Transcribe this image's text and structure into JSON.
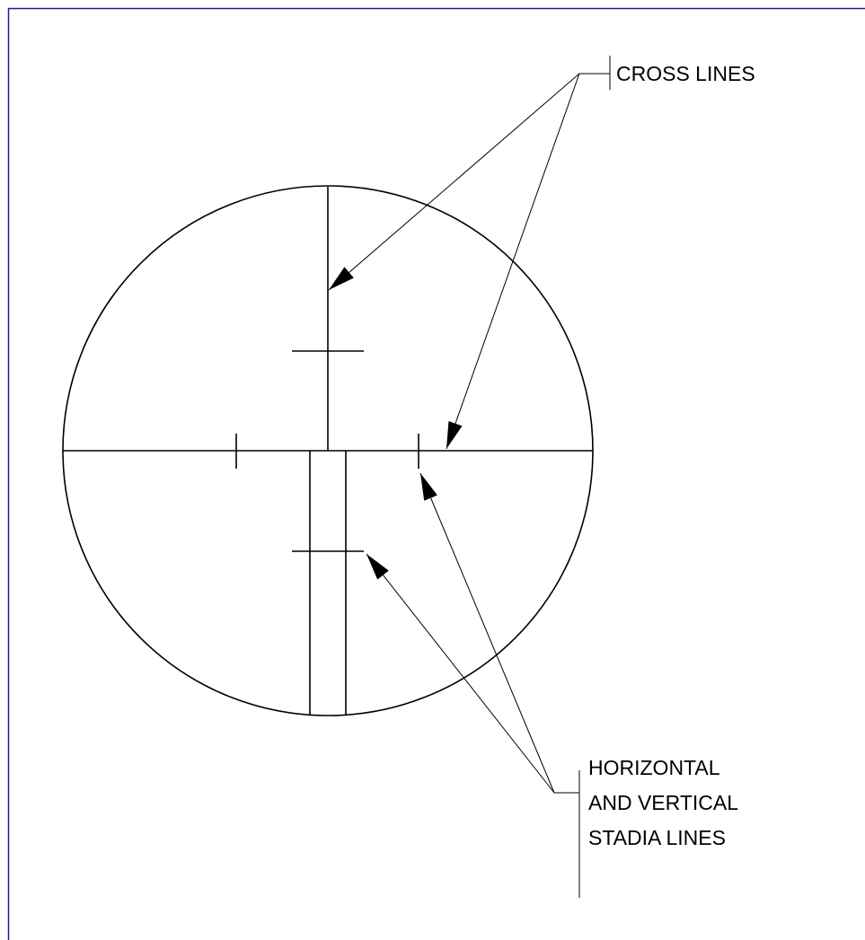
{
  "labels": {
    "cross_lines": "CROSS LINES",
    "stadia_lines": [
      "HORIZONTAL",
      "AND VERTICAL",
      "STADIA LINES"
    ]
  }
}
